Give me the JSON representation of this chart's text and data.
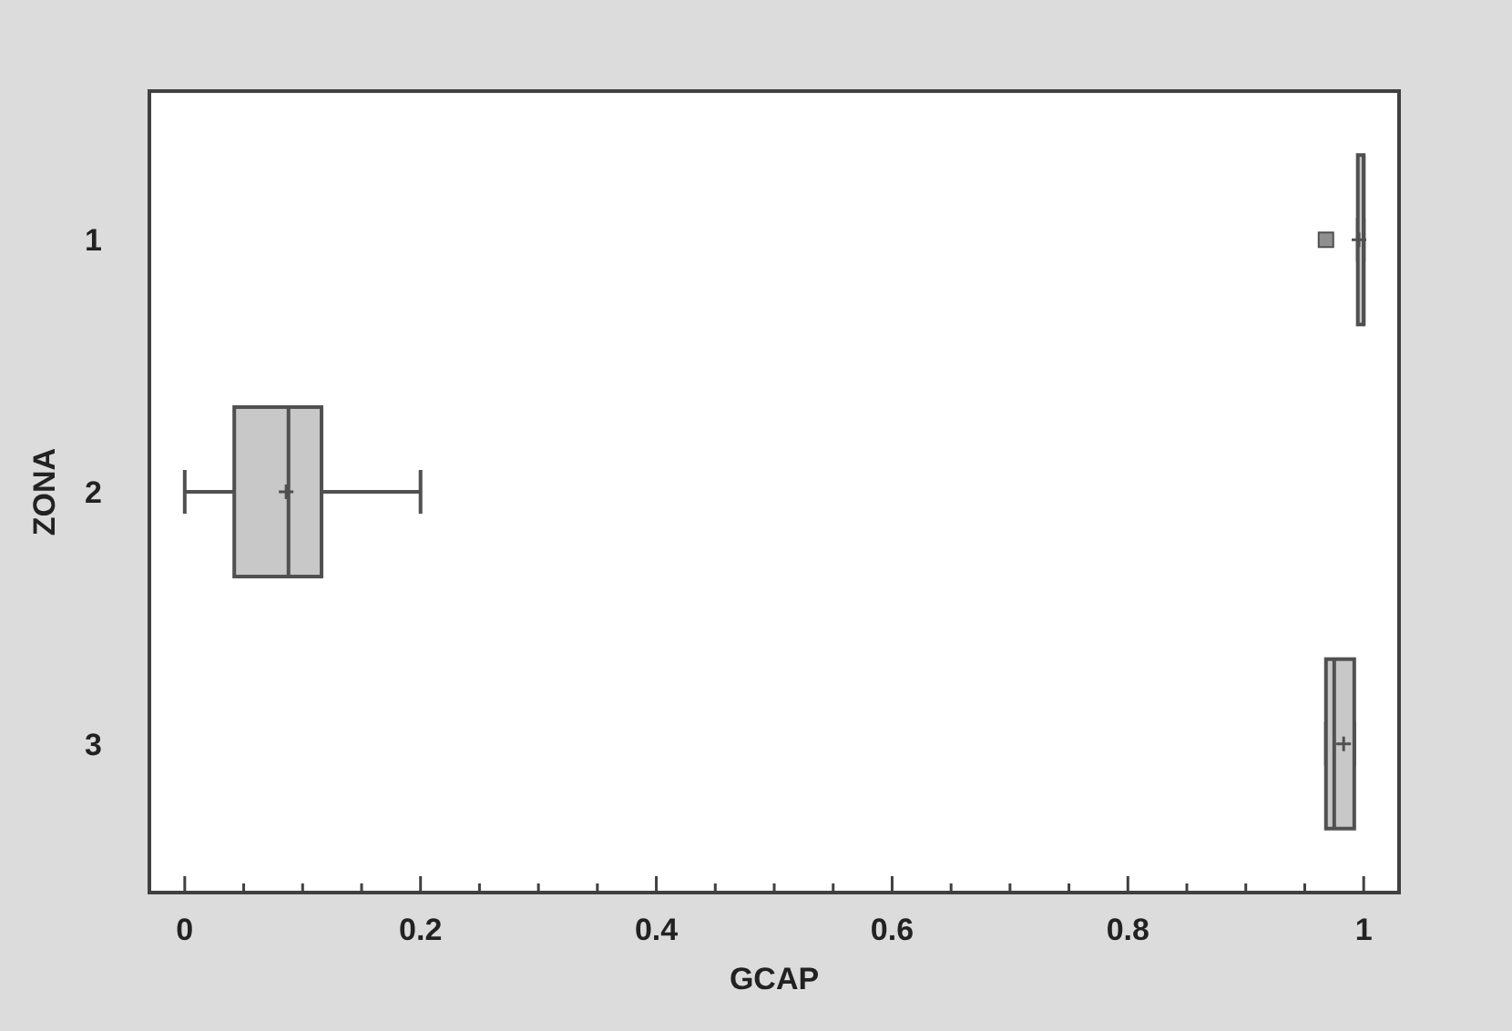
{
  "chart_data": {
    "type": "box",
    "orientation": "horizontal",
    "xlabel": "GCAP",
    "ylabel": "ZONA",
    "categories": [
      "1",
      "2",
      "3"
    ],
    "boxes": [
      {
        "low": 0.995,
        "q1": 0.995,
        "median": 1.0,
        "q3": 1.0,
        "high": 1.0,
        "mean": 0.996,
        "outliers": [
          0.968
        ]
      },
      {
        "low": 0.0,
        "q1": 0.042,
        "median": 0.088,
        "q3": 0.116,
        "high": 0.2,
        "mean": 0.086
      },
      {
        "low": 0.968,
        "q1": 0.968,
        "median": 0.975,
        "q3": 0.992,
        "high": 0.992,
        "mean": 0.983
      }
    ],
    "color": "#c8c8c8",
    "xlim": [
      -0.03,
      1.03
    ],
    "xticks": [
      0,
      {
        "value": 0.05,
        "label": null
      },
      0.2,
      {
        "value": 0.1,
        "label": null
      },
      {
        "value": 0.15,
        "label": null
      },
      {
        "value": 0.25,
        "label": null
      },
      {
        "value": 0.3,
        "label": null
      },
      {
        "value": 0.35,
        "label": null
      },
      0.4,
      {
        "value": 0.45,
        "label": null
      },
      {
        "value": 0.5,
        "label": null
      },
      {
        "value": 0.55,
        "label": null
      },
      0.6,
      {
        "value": 0.65,
        "label": null
      },
      {
        "value": 0.7,
        "label": null
      },
      {
        "value": 0.75,
        "label": null
      },
      0.8,
      {
        "value": 0.85,
        "label": null
      },
      {
        "value": 0.9,
        "label": null
      },
      {
        "value": 0.95,
        "label": null
      },
      1
    ],
    "grid": false
  }
}
